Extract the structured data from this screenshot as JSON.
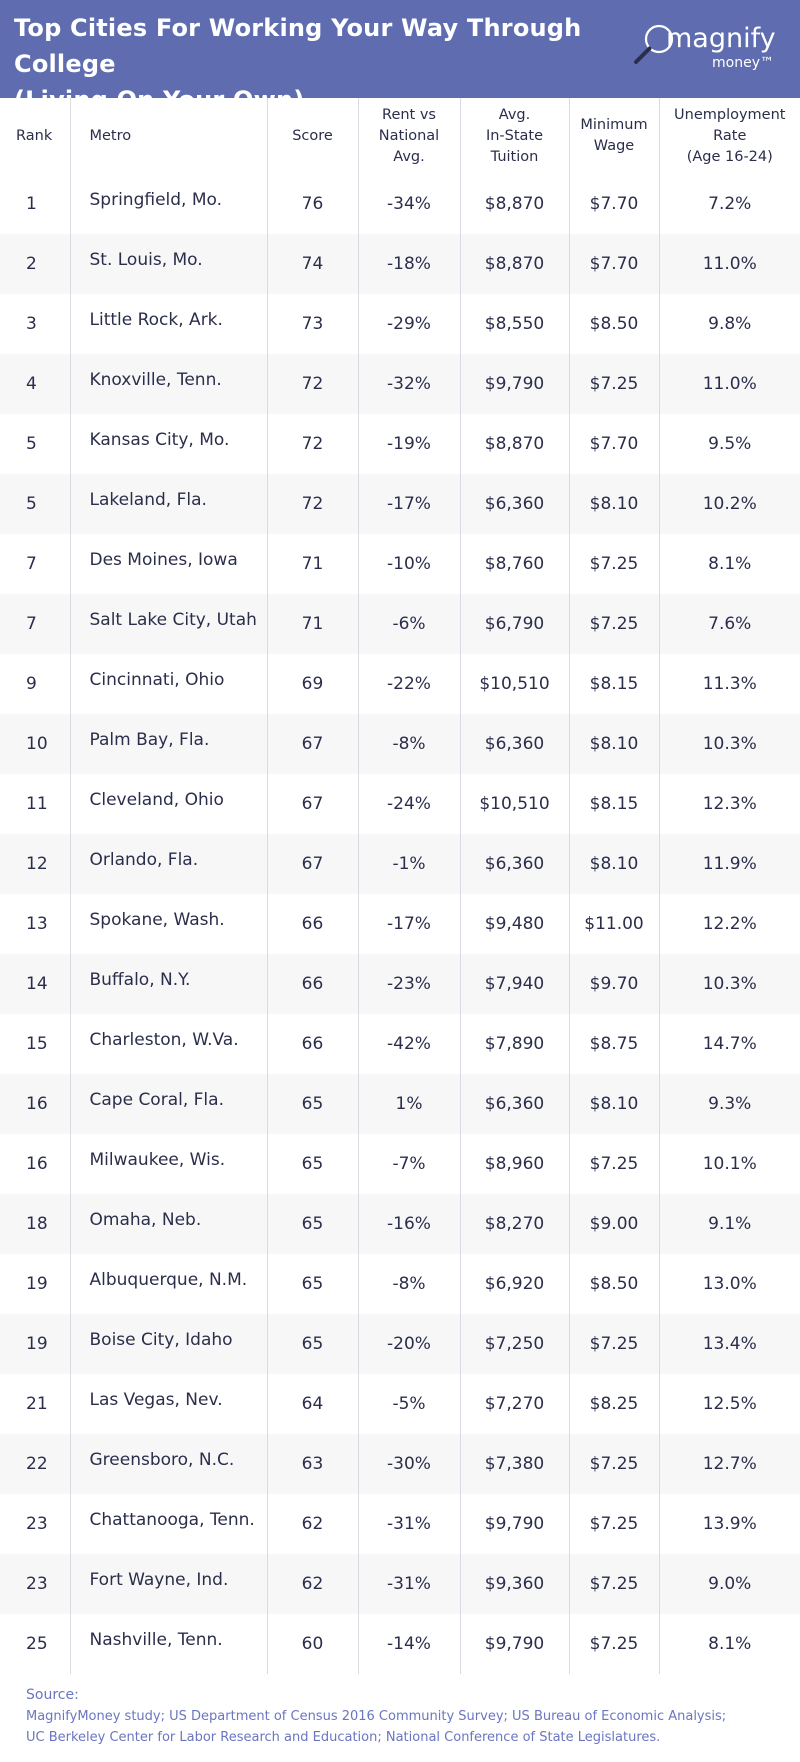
{
  "title_line1": "Top Cities For Working Your Way Through College",
  "title_line2": "(Living On Your Own)",
  "logo": {
    "brand": "magnify",
    "sub": "money™",
    "icon": "magnifier-icon"
  },
  "colors": {
    "header_bg": "#5f6db0",
    "source_text": "#6a76c0",
    "stripe": "#f7f7f8"
  },
  "chart_data": {
    "type": "table",
    "columns": [
      "Rank",
      "Metro",
      "Score",
      "Rent vs National Avg.",
      "Avg. In-State Tuition",
      "Minimum Wage",
      "Unemployment Rate (Age 16-24)"
    ],
    "header_lines": {
      "rank": [
        "Rank"
      ],
      "metro": [
        "Metro"
      ],
      "score": [
        "Score"
      ],
      "rent": [
        "Rent vs",
        "National",
        "Avg."
      ],
      "tuition": [
        "Avg.",
        "In-State",
        "Tuition"
      ],
      "wage": [
        "Minimum",
        "Wage"
      ],
      "unemp": [
        "Unemployment",
        "Rate",
        "(Age 16-24)"
      ]
    },
    "rows": [
      [
        "1",
        "Springfield, Mo.",
        "76",
        "-34%",
        "$8,870",
        "$7.70",
        "7.2%"
      ],
      [
        "2",
        "St. Louis, Mo.",
        "74",
        "-18%",
        "$8,870",
        "$7.70",
        "11.0%"
      ],
      [
        "3",
        "Little Rock, Ark.",
        "73",
        "-29%",
        "$8,550",
        "$8.50",
        "9.8%"
      ],
      [
        "4",
        "Knoxville, Tenn.",
        "72",
        "-32%",
        "$9,790",
        "$7.25",
        "11.0%"
      ],
      [
        "5",
        "Kansas City, Mo.",
        "72",
        "-19%",
        "$8,870",
        "$7.70",
        "9.5%"
      ],
      [
        "5",
        "Lakeland, Fla.",
        "72",
        "-17%",
        "$6,360",
        "$8.10",
        "10.2%"
      ],
      [
        "7",
        "Des Moines, Iowa",
        "71",
        "-10%",
        "$8,760",
        "$7.25",
        "8.1%"
      ],
      [
        "7",
        "Salt Lake City, Utah",
        "71",
        "-6%",
        "$6,790",
        "$7.25",
        "7.6%"
      ],
      [
        "9",
        "Cincinnati, Ohio",
        "69",
        "-22%",
        "$10,510",
        "$8.15",
        "11.3%"
      ],
      [
        "10",
        "Palm Bay, Fla.",
        "67",
        "-8%",
        "$6,360",
        "$8.10",
        "10.3%"
      ],
      [
        "11",
        "Cleveland, Ohio",
        "67",
        "-24%",
        "$10,510",
        "$8.15",
        "12.3%"
      ],
      [
        "12",
        "Orlando, Fla.",
        "67",
        "-1%",
        "$6,360",
        "$8.10",
        "11.9%"
      ],
      [
        "13",
        "Spokane, Wash.",
        "66",
        "-17%",
        "$9,480",
        "$11.00",
        "12.2%"
      ],
      [
        "14",
        "Buffalo, N.Y.",
        "66",
        "-23%",
        "$7,940",
        "$9.70",
        "10.3%"
      ],
      [
        "15",
        "Charleston, W.Va.",
        "66",
        "-42%",
        "$7,890",
        "$8.75",
        "14.7%"
      ],
      [
        "16",
        "Cape Coral, Fla.",
        "65",
        "1%",
        "$6,360",
        "$8.10",
        "9.3%"
      ],
      [
        "16",
        "Milwaukee, Wis.",
        "65",
        "-7%",
        "$8,960",
        "$7.25",
        "10.1%"
      ],
      [
        "18",
        "Omaha, Neb.",
        "65",
        "-16%",
        "$8,270",
        "$9.00",
        "9.1%"
      ],
      [
        "19",
        "Albuquerque, N.M.",
        "65",
        "-8%",
        "$6,920",
        "$8.50",
        "13.0%"
      ],
      [
        "19",
        "Boise City, Idaho",
        "65",
        "-20%",
        "$7,250",
        "$7.25",
        "13.4%"
      ],
      [
        "21",
        "Las Vegas, Nev.",
        "64",
        "-5%",
        "$7,270",
        "$8.25",
        "12.5%"
      ],
      [
        "22",
        "Greensboro, N.C.",
        "63",
        "-30%",
        "$7,380",
        "$7.25",
        "12.7%"
      ],
      [
        "23",
        "Chattanooga, Tenn.",
        "62",
        "-31%",
        "$9,790",
        "$7.25",
        "13.9%"
      ],
      [
        "23",
        "Fort Wayne, Ind.",
        "62",
        "-31%",
        "$9,360",
        "$7.25",
        "9.0%"
      ],
      [
        "25",
        "Nashville, Tenn.",
        "60",
        "-14%",
        "$9,790",
        "$7.25",
        "8.1%"
      ]
    ]
  },
  "source": {
    "title": "Source:",
    "line1": "MagnifyMoney study; US Department of Census 2016 Community Survey; US Bureau of Economic Analysis;",
    "line2": "UC Berkeley Center for Labor Research and Education; National Conference of State Legislatures."
  }
}
